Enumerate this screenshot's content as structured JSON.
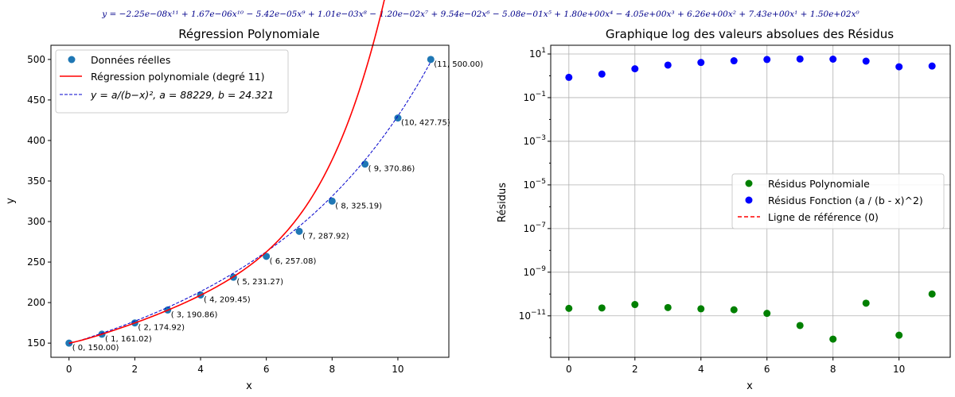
{
  "equation": "y = −2.25e−08x¹¹ + 1.67e−06x¹⁰ − 5.42e−05x⁹ + 1.01e−03x⁸ − 1.20e−02x⁷ + 9.54e−02x⁶ − 5.08e−01x⁵ + 1.80e+00x⁴ − 4.05e+00x³ + 6.26e+00x² + 7.43e+00x¹ + 1.50e+02x⁰",
  "colors": {
    "data_points": "#1f77b4",
    "poly_line": "#ff0000",
    "func_line": "#0000cc",
    "resid_poly": "#008000",
    "resid_func": "#0000ff",
    "equation": "#00008b",
    "grid": "#b0b0b0"
  },
  "chart_data": [
    {
      "type": "scatter",
      "title": "Régression Polynomiale",
      "xlabel": "x",
      "ylabel": "y",
      "xlim": [
        -0.55,
        11.55
      ],
      "ylim": [
        132.5,
        517.5
      ],
      "xticks": [
        0,
        2,
        4,
        6,
        8,
        10
      ],
      "yticks": [
        150,
        200,
        250,
        300,
        350,
        400,
        450,
        500
      ],
      "grid": false,
      "legend_position": "top-left",
      "points": [
        {
          "x": 0,
          "y": 150.0,
          "label": "( 0, 150.00)"
        },
        {
          "x": 1,
          "y": 161.02,
          "label": "( 1, 161.02)"
        },
        {
          "x": 2,
          "y": 174.92,
          "label": "( 2, 174.92)"
        },
        {
          "x": 3,
          "y": 190.86,
          "label": "( 3, 190.86)"
        },
        {
          "x": 4,
          "y": 209.45,
          "label": "( 4, 209.45)"
        },
        {
          "x": 5,
          "y": 231.27,
          "label": "( 5, 231.27)"
        },
        {
          "x": 6,
          "y": 257.08,
          "label": "( 6, 257.08)"
        },
        {
          "x": 7,
          "y": 287.92,
          "label": "( 7, 287.92)"
        },
        {
          "x": 8,
          "y": 325.19,
          "label": "( 8, 325.19)"
        },
        {
          "x": 9,
          "y": 370.86,
          "label": "( 9, 370.86)"
        },
        {
          "x": 10,
          "y": 427.75,
          "label": "(10, 427.75)"
        },
        {
          "x": 11,
          "y": 500.0,
          "label": "(11, 500.00)"
        }
      ],
      "series": [
        {
          "name": "Données réelles",
          "style": "scatter"
        },
        {
          "name": "Régression polynomiale (degré 11)",
          "style": "solid-line",
          "coefficients_high_to_low": [
            -2.25e-08,
            1.67e-06,
            -5.42e-05,
            0.00101,
            -0.012,
            0.0954,
            -0.508,
            1.8,
            -4.05,
            6.26,
            7.43,
            150.0
          ]
        },
        {
          "name": "y = a / (b − x)², a = 88229, b = 24.321",
          "style": "dashed-line",
          "a": 88229,
          "b": 24.321
        }
      ],
      "legend_labels": [
        "Données réelles",
        "Régression polynomiale (degré 11)",
        "y = a/(b−x)², a = 88229, b = 24.321"
      ]
    },
    {
      "type": "scatter",
      "title": "Graphique log des valeurs absolues des Résidus",
      "xlabel": "x",
      "ylabel": "Résidus",
      "log_y": true,
      "xlim": [
        -0.55,
        11.55
      ],
      "ylim_log10": [
        -12.9,
        1.4
      ],
      "xticks": [
        0,
        2,
        4,
        6,
        8,
        10
      ],
      "yticks_exponents": [
        1,
        -1,
        -3,
        -5,
        -7,
        -9,
        -11
      ],
      "grid": true,
      "legend_position": "center-right",
      "series": [
        {
          "name": "Résidus Polynomiale",
          "x": [
            0,
            1,
            2,
            3,
            4,
            5,
            6,
            7,
            8,
            9,
            10,
            11
          ],
          "y": [
            2.2e-11,
            2.3e-11,
            3.3e-11,
            2.4e-11,
            2.1e-11,
            1.9e-11,
            1.3e-11,
            3.6e-12,
            8.6e-13,
            3.8e-11,
            1.3e-12,
            1e-10
          ]
        },
        {
          "name": "Résidus Fonction (a / (b - x)^2)",
          "x": [
            0,
            1,
            2,
            3,
            4,
            5,
            6,
            7,
            8,
            9,
            10,
            11
          ],
          "y": [
            0.85,
            1.2,
            2.1,
            3.1,
            4.1,
            4.9,
            5.6,
            5.9,
            5.8,
            4.7,
            2.6,
            2.8
          ]
        },
        {
          "name": "Ligne de référence (0)",
          "y": [
            0
          ],
          "style": "dashed"
        }
      ]
    }
  ]
}
